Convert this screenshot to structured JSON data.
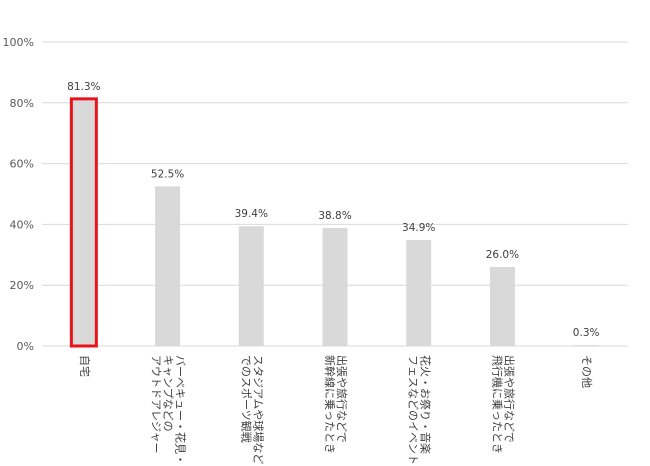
{
  "chart_data": {
    "type": "bar",
    "title": "",
    "xlabel": "",
    "ylabel": "",
    "ylim": [
      0,
      100
    ],
    "y_ticks": [
      "0%",
      "20%",
      "40%",
      "60%",
      "80%",
      "100%"
    ],
    "y_tick_values": [
      0,
      20,
      40,
      60,
      80,
      100
    ],
    "grid": true,
    "categories": [
      [
        "自宅"
      ],
      [
        "バーベキュー・花見・",
        "キャンプなどの",
        "アウトドアレジャー"
      ],
      [
        "スタジアムや球場など",
        "でのスポーツ観戦"
      ],
      [
        "出張や旅行などで",
        "新幹線に乗ったとき"
      ],
      [
        "花火・お祭り・音楽",
        "フェスなどのイベント"
      ],
      [
        "出張や旅行などで",
        "飛行機に乗ったとき"
      ],
      [
        "その他"
      ]
    ],
    "values": [
      81.3,
      52.5,
      39.4,
      38.8,
      34.9,
      26.0,
      0.3
    ],
    "data_labels": [
      "81.3%",
      "52.5%",
      "39.4%",
      "38.8%",
      "34.9%",
      "26.0%",
      "0.3%"
    ],
    "bar_color": "#d9d9d9",
    "highlight_index": 0,
    "highlight_color": "#e8141b",
    "gridline_color": "#d9d9d9"
  }
}
